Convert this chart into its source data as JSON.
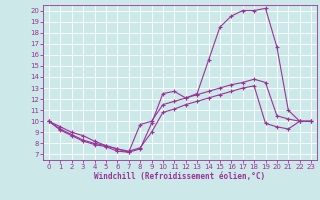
{
  "bg_color": "#cce8e8",
  "grid_color": "#ffffff",
  "line_color": "#993399",
  "marker": "+",
  "markersize": 3,
  "linewidth": 0.8,
  "xlabel": "Windchill (Refroidissement éolien,°C)",
  "xlabel_fontsize": 5.5,
  "tick_fontsize": 5,
  "xlim": [
    -0.5,
    23.5
  ],
  "ylim": [
    6.5,
    20.5
  ],
  "yticks": [
    7,
    8,
    9,
    10,
    11,
    12,
    13,
    14,
    15,
    16,
    17,
    18,
    19,
    20
  ],
  "xticks": [
    0,
    1,
    2,
    3,
    4,
    5,
    6,
    7,
    8,
    9,
    10,
    11,
    12,
    13,
    14,
    15,
    16,
    17,
    18,
    19,
    20,
    21,
    22,
    23
  ],
  "line1_x": [
    0,
    1,
    2,
    3,
    4,
    5,
    6,
    7,
    8,
    9,
    10,
    11,
    12,
    13,
    14,
    15,
    16,
    17,
    18,
    19,
    20,
    21,
    22,
    23
  ],
  "line1_y": [
    10.0,
    9.5,
    9.0,
    8.7,
    8.2,
    7.8,
    7.5,
    7.2,
    7.5,
    9.8,
    12.5,
    12.7,
    12.1,
    12.5,
    15.5,
    18.5,
    19.5,
    20.0,
    20.0,
    20.2,
    16.7,
    11.0,
    10.0,
    10.0
  ],
  "line2_x": [
    0,
    1,
    2,
    3,
    4,
    5,
    6,
    7,
    8,
    9,
    10,
    11,
    12,
    13,
    14,
    15,
    16,
    17,
    18,
    19,
    20,
    21,
    22,
    23
  ],
  "line2_y": [
    10.0,
    9.2,
    8.7,
    8.2,
    7.9,
    7.7,
    7.3,
    7.2,
    9.7,
    10.0,
    11.5,
    11.8,
    12.1,
    12.4,
    12.7,
    13.0,
    13.3,
    13.5,
    13.8,
    13.5,
    10.5,
    10.2,
    10.0,
    10.0
  ],
  "line3_x": [
    0,
    1,
    2,
    3,
    4,
    5,
    6,
    7,
    8,
    9,
    10,
    11,
    12,
    13,
    14,
    15,
    16,
    17,
    18,
    19,
    20,
    21,
    22,
    23
  ],
  "line3_y": [
    10.0,
    9.3,
    8.8,
    8.3,
    8.0,
    7.8,
    7.5,
    7.3,
    7.6,
    9.0,
    10.8,
    11.1,
    11.5,
    11.8,
    12.1,
    12.4,
    12.7,
    13.0,
    13.2,
    9.8,
    9.5,
    9.3,
    10.0,
    10.0
  ]
}
